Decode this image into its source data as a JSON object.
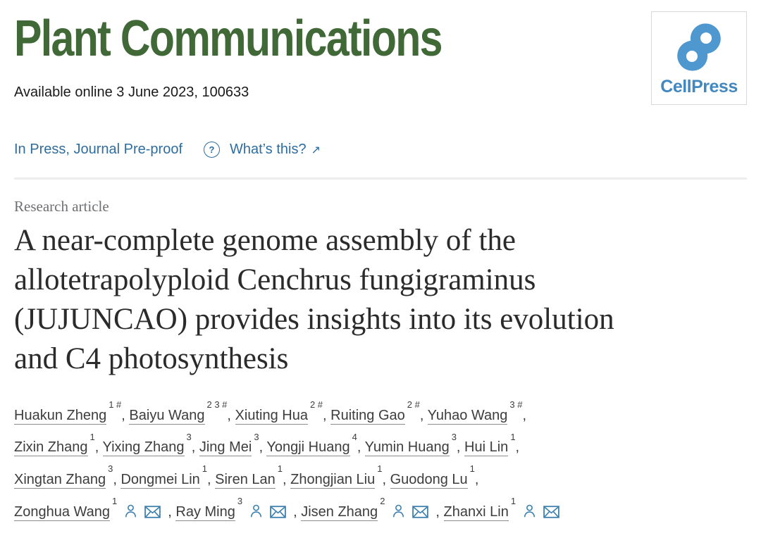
{
  "journal": {
    "title": "Plant Communications",
    "logo_text": "CellPress"
  },
  "meta": {
    "available_online": "Available online 3 June 2023, 100633",
    "in_press_label": "In Press, Journal Pre-proof",
    "help_glyph": "?",
    "whats_this_label": "What’s this?",
    "external_arrow": "↗"
  },
  "article": {
    "type_label": "Research article",
    "title": "A near-complete genome assembly of the allotetrapolyploid Cenchrus fungigraminus (JUJUNCAO) provides insights into its evolution and C4 photosynthesis",
    "title_lines": [
      "A near-complete genome assembly of the",
      "allotetrapolyploid Cenchrus fungigraminus",
      "(JUJUNCAO) provides insights into its evolution",
      "and C4 photosynthesis"
    ]
  },
  "authors": {
    "lines": [
      [
        {
          "name": "Huakun Zheng",
          "sup": "1 #"
        },
        {
          "name": "Baiyu Wang",
          "sup": "2 3 #"
        },
        {
          "name": "Xiuting Hua",
          "sup": "2 #"
        },
        {
          "name": "Ruiting Gao",
          "sup": "2 #"
        },
        {
          "name": "Yuhao Wang",
          "sup": "3 #"
        }
      ],
      [
        {
          "name": "Zixin Zhang",
          "sup": "1"
        },
        {
          "name": "Yixing Zhang",
          "sup": "3"
        },
        {
          "name": "Jing Mei",
          "sup": "3"
        },
        {
          "name": "Yongji Huang",
          "sup": "4"
        },
        {
          "name": "Yumin Huang",
          "sup": "3"
        },
        {
          "name": "Hui Lin",
          "sup": "1"
        }
      ],
      [
        {
          "name": "Xingtan Zhang",
          "sup": "3"
        },
        {
          "name": "Dongmei Lin",
          "sup": "1"
        },
        {
          "name": "Siren Lan",
          "sup": "1"
        },
        {
          "name": "Zhongjian Liu",
          "sup": "1"
        },
        {
          "name": "Guodong Lu",
          "sup": "1"
        }
      ],
      [
        {
          "name": "Zonghua Wang",
          "sup": "1",
          "icons": true
        },
        {
          "name": "Ray Ming",
          "sup": "3",
          "icons": true
        },
        {
          "name": "Jisen Zhang",
          "sup": "2",
          "icons": true
        },
        {
          "name": "Zhanxi Lin",
          "sup": "1",
          "icons": true,
          "last": true
        }
      ]
    ]
  },
  "colors": {
    "journal_green": "#406937",
    "link_blue": "#2e6da0",
    "icon_blue": "#3b7fad",
    "logo_blue": "#4e97cf",
    "logo_text_blue": "#4187c0",
    "divider_gray": "#ededed",
    "label_gray": "#6e7073",
    "title_ink": "#2b2b2b"
  }
}
